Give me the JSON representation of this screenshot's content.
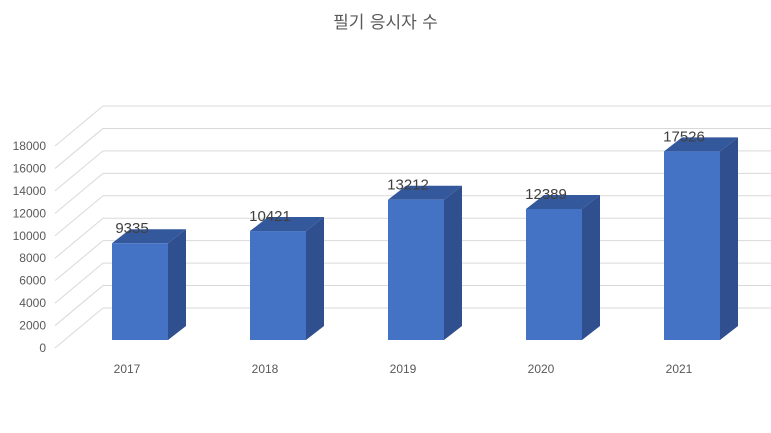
{
  "chart_data": {
    "type": "bar",
    "title": "필기 응시자 수",
    "xlabel": "",
    "ylabel": "",
    "categories": [
      "2017",
      "2018",
      "2019",
      "2020",
      "2021"
    ],
    "values": [
      9335,
      10421,
      13212,
      12389,
      17526
    ],
    "ylim": [
      0,
      18000
    ],
    "yticks": [
      "0",
      "2000",
      "4000",
      "6000",
      "8000",
      "10000",
      "12000",
      "14000",
      "16000",
      "18000"
    ],
    "grid": true,
    "legend": "none",
    "colors": {
      "bar_front": "#4472C4",
      "bar_side": "#2F4F8F",
      "bar_top": "#34589C",
      "grid": "#D9D9D9"
    }
  }
}
